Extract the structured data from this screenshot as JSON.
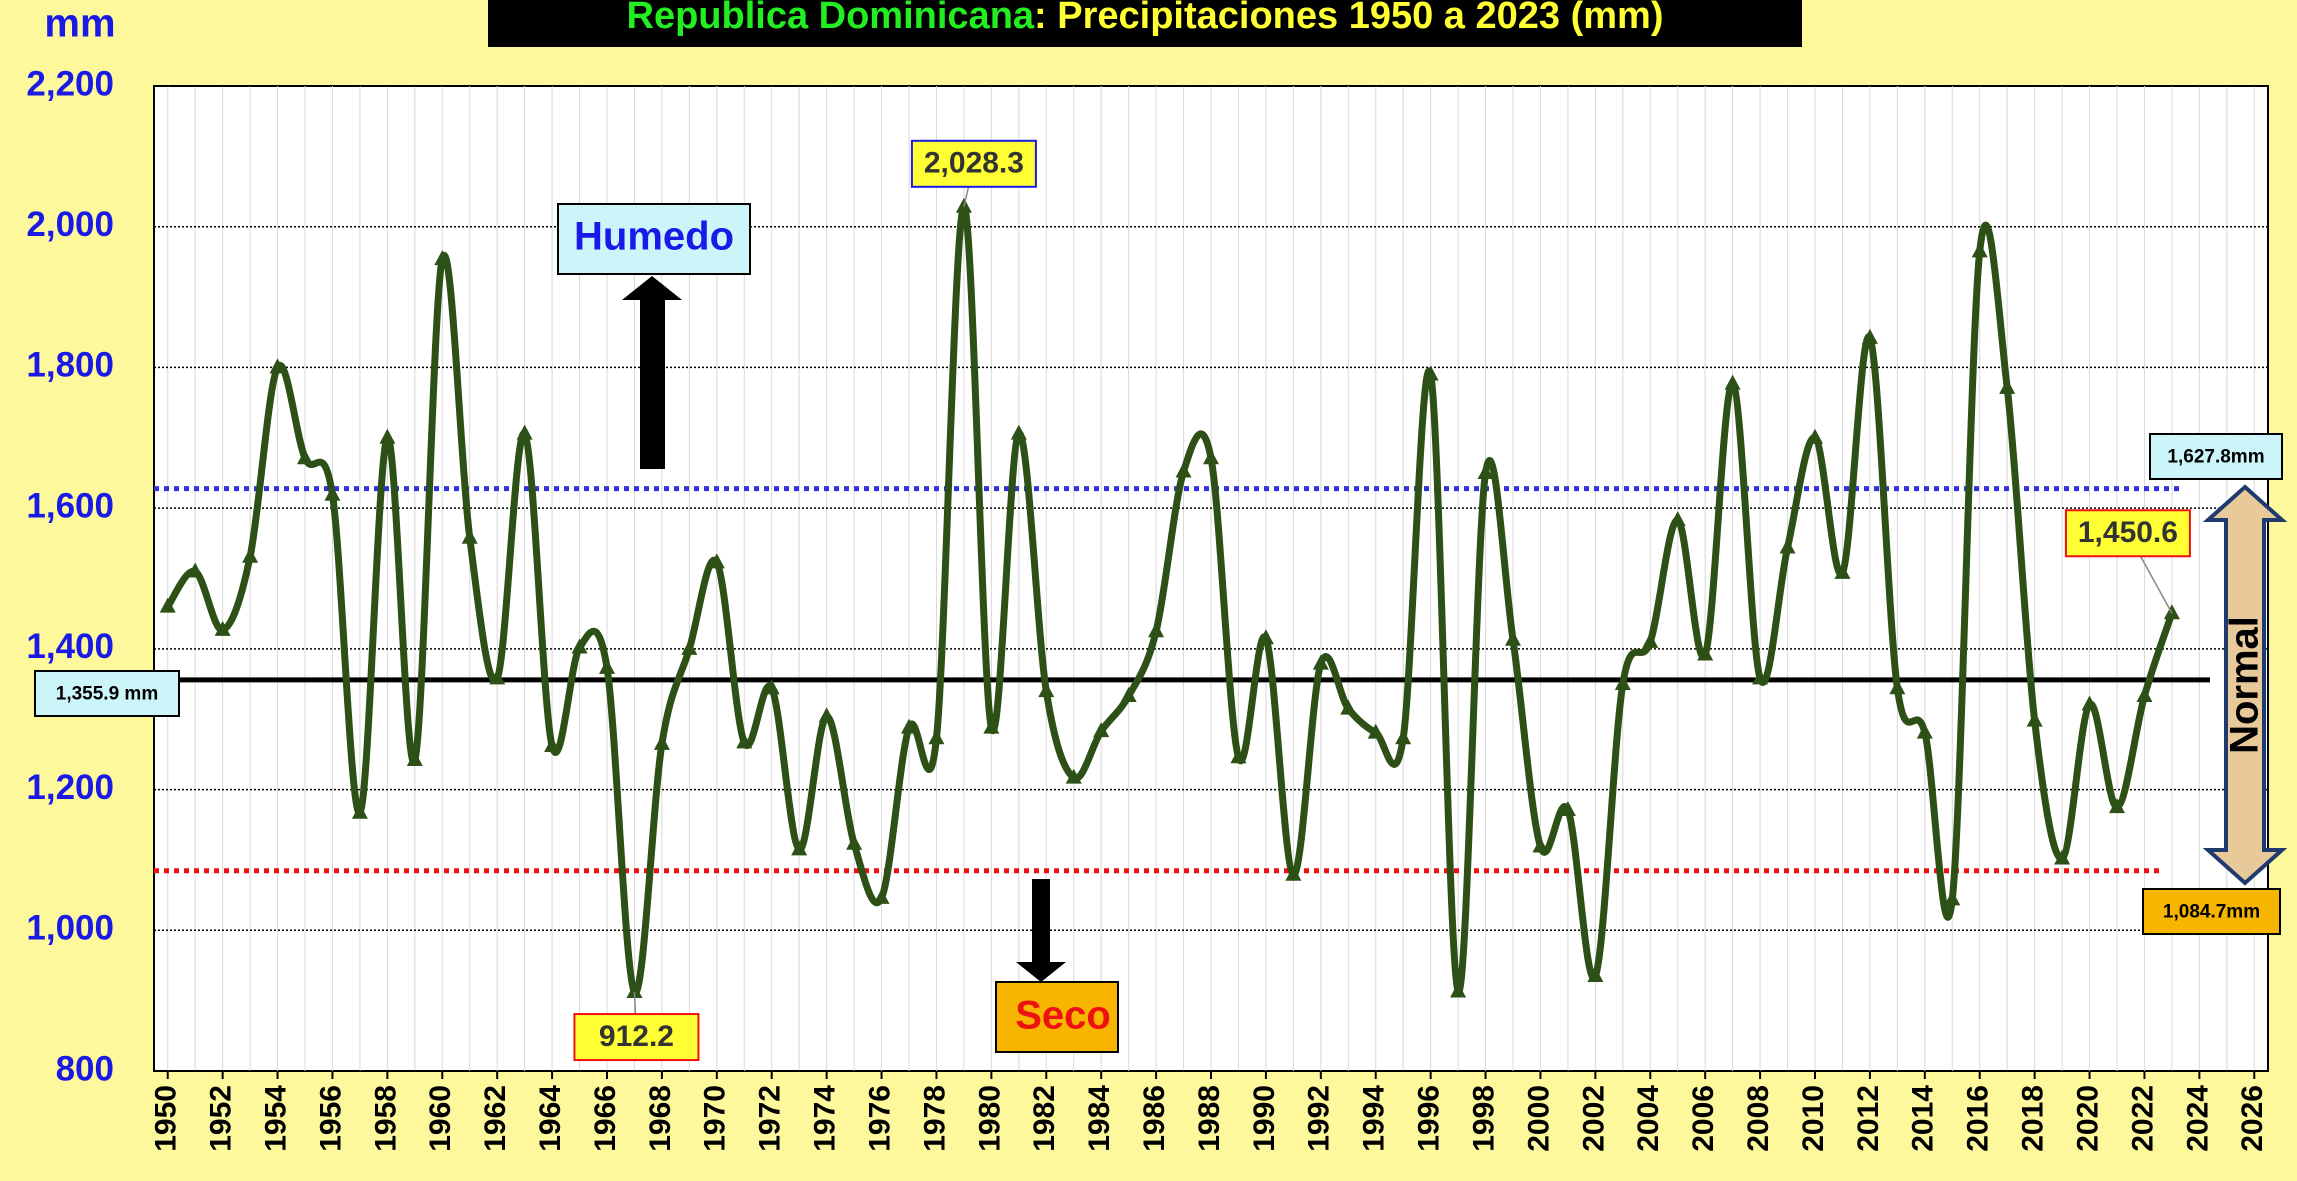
{
  "chart_data": {
    "type": "line",
    "title": [
      "Republica Dominicana",
      ": Precipitaciones  1950 a 2023 (mm)"
    ],
    "y_unit": "mm",
    "x": [
      1950,
      1951,
      1952,
      1953,
      1954,
      1955,
      1956,
      1957,
      1958,
      1959,
      1960,
      1961,
      1962,
      1963,
      1964,
      1965,
      1966,
      1967,
      1968,
      1969,
      1970,
      1971,
      1972,
      1973,
      1974,
      1975,
      1976,
      1977,
      1978,
      1979,
      1980,
      1981,
      1982,
      1983,
      1984,
      1985,
      1986,
      1987,
      1988,
      1989,
      1990,
      1991,
      1992,
      1993,
      1994,
      1995,
      1996,
      1997,
      1998,
      1999,
      2000,
      2001,
      2002,
      2003,
      2004,
      2005,
      2006,
      2007,
      2008,
      2009,
      2010,
      2011,
      2012,
      2013,
      2014,
      2015,
      2016,
      2017,
      2018,
      2019,
      2020,
      2021,
      2022,
      2023
    ],
    "series": [
      {
        "color": "#2d5016",
        "values": [
          1460,
          1510,
          1427,
          1531,
          1800,
          1671,
          1619,
          1167,
          1700,
          1242,
          1954,
          1558,
          1358,
          1706,
          1262,
          1402,
          1373,
          912.2,
          1265,
          1400,
          1523,
          1267,
          1344,
          1115,
          1304,
          1123,
          1046,
          1288,
          1273,
          2028.3,
          1288,
          1706,
          1340,
          1217,
          1283,
          1333,
          1425,
          1652,
          1671,
          1246,
          1415,
          1079,
          1379,
          1315,
          1281,
          1273,
          1790,
          913,
          1650,
          1413,
          1119,
          1171,
          935,
          1350,
          1410,
          1583,
          1392,
          1777,
          1358,
          1544,
          1700,
          1508,
          1842,
          1344,
          1281,
          1044,
          1965,
          1771,
          1298,
          1102,
          1321,
          1175,
          1333,
          1450.6
        ],
        "value_labels": [
          null,
          null,
          null,
          null,
          null,
          null,
          null,
          null,
          null,
          null,
          null,
          null,
          null,
          null,
          null,
          null,
          null,
          "912.2",
          null,
          null,
          null,
          null,
          null,
          null,
          null,
          null,
          null,
          null,
          null,
          "2,028.3",
          null,
          null,
          null,
          null,
          null,
          null,
          null,
          null,
          null,
          null,
          null,
          null,
          null,
          null,
          null,
          null,
          null,
          null,
          null,
          null,
          null,
          null,
          null,
          null,
          null,
          null,
          null,
          null,
          null,
          null,
          null,
          null,
          null,
          null,
          null,
          null,
          null,
          null,
          null,
          null,
          null,
          null,
          null,
          "1,450.6"
        ]
      }
    ],
    "xlim": [
      1949.5,
      2026.5
    ],
    "xticks": [
      1950,
      1952,
      1954,
      1956,
      1958,
      1960,
      1962,
      1964,
      1966,
      1968,
      1970,
      1972,
      1974,
      1976,
      1978,
      1980,
      1982,
      1984,
      1986,
      1988,
      1990,
      1992,
      1994,
      1996,
      1998,
      2000,
      2002,
      2004,
      2006,
      2008,
      2010,
      2012,
      2014,
      2016,
      2018,
      2020,
      2022,
      2024,
      2026
    ],
    "ylim": [
      800,
      2200
    ],
    "yticks": [
      800,
      {
        "value": 1000,
        "label": "1,000"
      },
      {
        "value": 1200,
        "label": "1,200"
      },
      {
        "value": 1400,
        "label": "1,400"
      },
      {
        "value": 1600,
        "label": "1,600"
      },
      {
        "value": 1800,
        "label": "1,800"
      },
      {
        "value": 2000,
        "label": "2,000"
      },
      {
        "value": 2200,
        "label": "2,200"
      }
    ],
    "grid": true,
    "reference_lines": [
      {
        "value": 1355.9,
        "label": "1,355.9 mm",
        "color": "#000000",
        "style": "solid"
      },
      {
        "value": 1627.8,
        "label": "1,627.8mm",
        "color": "#3333dd",
        "style": "dotted"
      },
      {
        "value": 1084.7,
        "label": "1,084.7mm",
        "color": "#ee1111",
        "style": "dotted"
      }
    ],
    "annotations": [
      "Humedo",
      "Seco",
      "Normal"
    ]
  }
}
